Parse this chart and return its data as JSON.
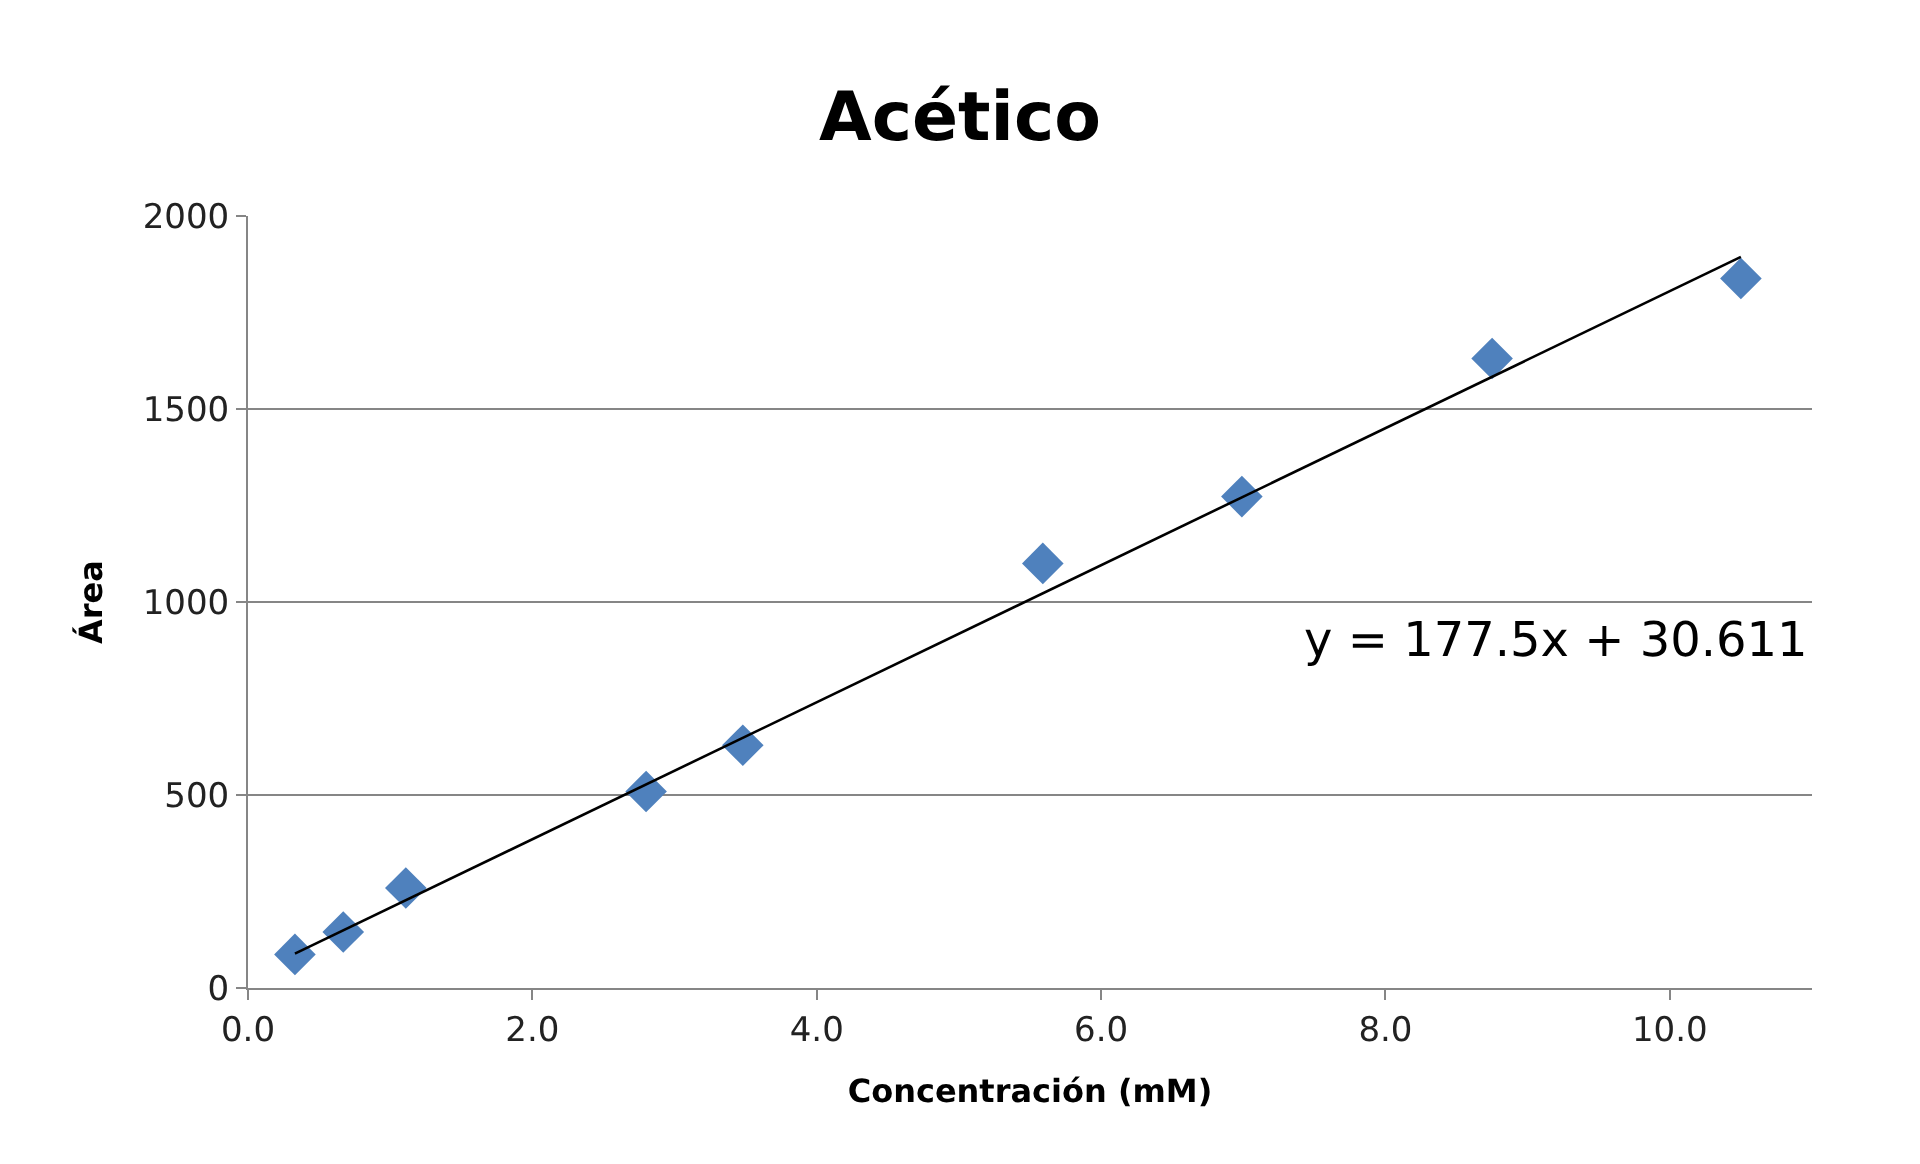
{
  "chart_data": {
    "type": "scatter",
    "title": "Acético",
    "xlabel": "Concentración (mM)",
    "ylabel": "Área",
    "xlim": [
      0,
      11
    ],
    "xticks": [
      {
        "value": 0,
        "label": "0.0"
      },
      {
        "value": 2,
        "label": "2.0"
      },
      {
        "value": 4,
        "label": "4.0"
      },
      {
        "value": 6,
        "label": "6.0"
      },
      {
        "value": 8,
        "label": "8.0"
      },
      {
        "value": 10,
        "label": "10.0"
      }
    ],
    "ylim": [
      0,
      2000
    ],
    "yticks": [
      0,
      500,
      1000,
      1500,
      2000
    ],
    "grid": "y",
    "series": [
      {
        "marker": "diamond",
        "color": "#4f81bd",
        "x": [
          0.33,
          0.67,
          1.11,
          2.8,
          3.48,
          5.59,
          6.99,
          8.75,
          10.5
        ],
        "values": [
          87,
          145,
          259,
          509,
          629,
          1100,
          1273,
          1631,
          1838
        ]
      },
      {
        "type": "line",
        "marker": "none",
        "color": "#000000",
        "line_style": "solid",
        "x": [
          0.33,
          10.5
        ],
        "values": [
          89,
          1894
        ]
      }
    ],
    "annotations": [
      "y = 177.5x + 30.611"
    ]
  }
}
